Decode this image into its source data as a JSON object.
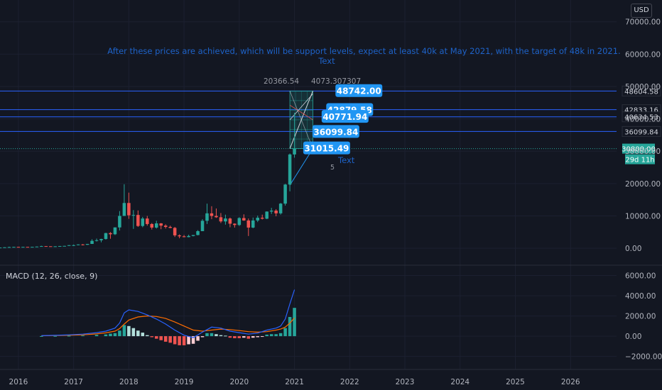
{
  "currency_button": "USD",
  "annotation_main": "After these prices are achieved, which will be support levels, expect at least 40k at May 2021, with the target of 48k in 2021.",
  "annotation_main_sub": "Text",
  "annotation_side": "Text",
  "wave_count": "5",
  "fib_label_left": "20366.54",
  "fib_label_right": "4073.307307",
  "price_badges": [
    {
      "value": "48742.00",
      "price": 48742,
      "date": "2022-03"
    },
    {
      "value": "42879.58",
      "price": 42879.58,
      "date": "2022-01"
    },
    {
      "value": "40771.94",
      "price": 40771.94,
      "date": "2021-12"
    },
    {
      "value": "36099.84",
      "price": 36099.84,
      "date": "2021-10"
    },
    {
      "value": "31015.49",
      "price": 31015.49,
      "date": "2021-08"
    }
  ],
  "levels": [
    {
      "value": "48604.58",
      "price": 48604.58
    },
    {
      "value": "42833.16",
      "price": 42833.16
    },
    {
      "value": "40634.53",
      "price": 40634.53
    },
    {
      "value": "36099.84",
      "price": 36099.84
    }
  ],
  "current_price": {
    "value": "30800.00",
    "price": 30800,
    "countdown": "29d 11h"
  },
  "macd_label": "MACD (12, 26, close, 9)",
  "colors": {
    "background": "#131722",
    "up": "#26a69a",
    "down": "#ef5350",
    "level_line": "#2962ff",
    "badge": "#2196f3",
    "macd_line": "#2962ff",
    "signal_line": "#ff6d00",
    "current_price": "#26a69a"
  },
  "chart_data": {
    "type": "candlestick",
    "price_axis": {
      "ticks": [
        0,
        10000,
        20000,
        30000,
        40000,
        50000,
        60000,
        70000
      ],
      "tick_labels": [
        "0.00",
        "10000.00",
        "20000.00",
        "30000.00",
        "40000.00",
        "50000.00",
        "60000.00",
        "70000.00"
      ],
      "ylim": [
        -1500,
        73000
      ]
    },
    "time_axis": {
      "labels": [
        "2016",
        "2017",
        "2018",
        "2019",
        "2020",
        "2021",
        "2022",
        "2023",
        "2024",
        "2025",
        "2026"
      ],
      "xlim": [
        "2015-09",
        "2026-11"
      ]
    },
    "ohlc": [
      {
        "date": "2015-09",
        "o": 230,
        "h": 240,
        "l": 225,
        "c": 236
      },
      {
        "date": "2015-10",
        "o": 236,
        "h": 315,
        "l": 235,
        "c": 312
      },
      {
        "date": "2015-11",
        "o": 312,
        "h": 490,
        "l": 310,
        "c": 377
      },
      {
        "date": "2015-12",
        "o": 377,
        "h": 465,
        "l": 350,
        "c": 430
      },
      {
        "date": "2016-01",
        "o": 430,
        "h": 460,
        "l": 355,
        "c": 368
      },
      {
        "date": "2016-02",
        "o": 368,
        "h": 440,
        "l": 365,
        "c": 436
      },
      {
        "date": "2016-03",
        "o": 436,
        "h": 440,
        "l": 405,
        "c": 416
      },
      {
        "date": "2016-04",
        "o": 416,
        "h": 465,
        "l": 414,
        "c": 448
      },
      {
        "date": "2016-05",
        "o": 448,
        "h": 540,
        "l": 435,
        "c": 531
      },
      {
        "date": "2016-06",
        "o": 531,
        "h": 780,
        "l": 525,
        "c": 673
      },
      {
        "date": "2016-07",
        "o": 673,
        "h": 700,
        "l": 610,
        "c": 624
      },
      {
        "date": "2016-08",
        "o": 624,
        "h": 625,
        "l": 535,
        "c": 575
      },
      {
        "date": "2016-09",
        "o": 575,
        "h": 620,
        "l": 570,
        "c": 609
      },
      {
        "date": "2016-10",
        "o": 609,
        "h": 715,
        "l": 605,
        "c": 700
      },
      {
        "date": "2016-11",
        "o": 700,
        "h": 755,
        "l": 690,
        "c": 745
      },
      {
        "date": "2016-12",
        "o": 745,
        "h": 980,
        "l": 740,
        "c": 963
      },
      {
        "date": "2017-01",
        "o": 963,
        "h": 1150,
        "l": 750,
        "c": 970
      },
      {
        "date": "2017-02",
        "o": 970,
        "h": 1200,
        "l": 915,
        "c": 1190
      },
      {
        "date": "2017-03",
        "o": 1190,
        "h": 1300,
        "l": 890,
        "c": 1080
      },
      {
        "date": "2017-04",
        "o": 1080,
        "h": 1360,
        "l": 1050,
        "c": 1350
      },
      {
        "date": "2017-05",
        "o": 1350,
        "h": 2800,
        "l": 1340,
        "c": 2300
      },
      {
        "date": "2017-06",
        "o": 2300,
        "h": 3000,
        "l": 2100,
        "c": 2480
      },
      {
        "date": "2017-07",
        "o": 2480,
        "h": 2950,
        "l": 1850,
        "c": 2875
      },
      {
        "date": "2017-08",
        "o": 2875,
        "h": 4780,
        "l": 2670,
        "c": 4700
      },
      {
        "date": "2017-09",
        "o": 4700,
        "h": 5000,
        "l": 2950,
        "c": 4340
      },
      {
        "date": "2017-10",
        "o": 4340,
        "h": 6470,
        "l": 4100,
        "c": 6450
      },
      {
        "date": "2017-11",
        "o": 6450,
        "h": 11500,
        "l": 5500,
        "c": 10000
      },
      {
        "date": "2017-12",
        "o": 10000,
        "h": 19800,
        "l": 10000,
        "c": 14000
      },
      {
        "date": "2018-01",
        "o": 14000,
        "h": 17200,
        "l": 9100,
        "c": 10200
      },
      {
        "date": "2018-02",
        "o": 10200,
        "h": 11800,
        "l": 6000,
        "c": 10300
      },
      {
        "date": "2018-03",
        "o": 10300,
        "h": 11700,
        "l": 6600,
        "c": 6900
      },
      {
        "date": "2018-04",
        "o": 6900,
        "h": 9700,
        "l": 6500,
        "c": 9200
      },
      {
        "date": "2018-05",
        "o": 9200,
        "h": 10000,
        "l": 7000,
        "c": 7500
      },
      {
        "date": "2018-06",
        "o": 7500,
        "h": 7800,
        "l": 5800,
        "c": 6400
      },
      {
        "date": "2018-07",
        "o": 6400,
        "h": 8500,
        "l": 6100,
        "c": 7700
      },
      {
        "date": "2018-08",
        "o": 7700,
        "h": 7800,
        "l": 5900,
        "c": 7000
      },
      {
        "date": "2018-09",
        "o": 7000,
        "h": 7400,
        "l": 6100,
        "c": 6600
      },
      {
        "date": "2018-10",
        "o": 6600,
        "h": 7000,
        "l": 6200,
        "c": 6300
      },
      {
        "date": "2018-11",
        "o": 6300,
        "h": 6600,
        "l": 3500,
        "c": 4000
      },
      {
        "date": "2018-12",
        "o": 4000,
        "h": 4300,
        "l": 3100,
        "c": 3700
      },
      {
        "date": "2019-01",
        "o": 3700,
        "h": 4100,
        "l": 3400,
        "c": 3450
      },
      {
        "date": "2019-02",
        "o": 3450,
        "h": 4200,
        "l": 3400,
        "c": 3800
      },
      {
        "date": "2019-03",
        "o": 3800,
        "h": 4100,
        "l": 3700,
        "c": 4100
      },
      {
        "date": "2019-04",
        "o": 4100,
        "h": 5600,
        "l": 4000,
        "c": 5300
      },
      {
        "date": "2019-05",
        "o": 5300,
        "h": 9000,
        "l": 5300,
        "c": 8500
      },
      {
        "date": "2019-06",
        "o": 8500,
        "h": 13800,
        "l": 7500,
        "c": 10800
      },
      {
        "date": "2019-07",
        "o": 10800,
        "h": 13000,
        "l": 9000,
        "c": 10000
      },
      {
        "date": "2019-08",
        "o": 10000,
        "h": 12300,
        "l": 9400,
        "c": 9600
      },
      {
        "date": "2019-09",
        "o": 9600,
        "h": 10900,
        "l": 7800,
        "c": 8300
      },
      {
        "date": "2019-10",
        "o": 8300,
        "h": 10400,
        "l": 7300,
        "c": 9200
      },
      {
        "date": "2019-11",
        "o": 9200,
        "h": 9500,
        "l": 6500,
        "c": 7600
      },
      {
        "date": "2019-12",
        "o": 7600,
        "h": 7700,
        "l": 6400,
        "c": 7200
      },
      {
        "date": "2020-01",
        "o": 7200,
        "h": 9600,
        "l": 6900,
        "c": 9350
      },
      {
        "date": "2020-02",
        "o": 9350,
        "h": 10500,
        "l": 8500,
        "c": 8600
      },
      {
        "date": "2020-03",
        "o": 8600,
        "h": 9200,
        "l": 3800,
        "c": 6400
      },
      {
        "date": "2020-04",
        "o": 6400,
        "h": 9500,
        "l": 6200,
        "c": 8600
      },
      {
        "date": "2020-05",
        "o": 8600,
        "h": 10100,
        "l": 8100,
        "c": 9450
      },
      {
        "date": "2020-06",
        "o": 9450,
        "h": 10400,
        "l": 8900,
        "c": 9150
      },
      {
        "date": "2020-07",
        "o": 9150,
        "h": 11400,
        "l": 9000,
        "c": 11350
      },
      {
        "date": "2020-08",
        "o": 11350,
        "h": 12500,
        "l": 10600,
        "c": 11650
      },
      {
        "date": "2020-09",
        "o": 11650,
        "h": 12100,
        "l": 9900,
        "c": 10800
      },
      {
        "date": "2020-10",
        "o": 10800,
        "h": 14000,
        "l": 10400,
        "c": 13800
      },
      {
        "date": "2020-11",
        "o": 13800,
        "h": 19900,
        "l": 13200,
        "c": 19700
      },
      {
        "date": "2020-12",
        "o": 19700,
        "h": 29300,
        "l": 17600,
        "c": 29000
      },
      {
        "date": "2021-01",
        "o": 29000,
        "h": 41900,
        "l": 28000,
        "c": 30800
      }
    ],
    "macd": {
      "label": "MACD (12, 26, close, 9)",
      "axis": {
        "ticks": [
          -2000,
          0,
          2000,
          4000,
          6000
        ],
        "tick_labels": [
          "−2000.00",
          "0.00",
          "2000.00",
          "4000.00",
          "6000.00"
        ],
        "ylim": [
          -2800,
          6600
        ]
      },
      "series_dates": [
        "2016-06",
        "2016-09",
        "2016-12",
        "2017-03",
        "2017-06",
        "2017-08",
        "2017-10",
        "2017-11",
        "2017-12",
        "2018-01",
        "2018-03",
        "2018-05",
        "2018-07",
        "2018-09",
        "2018-11",
        "2019-01",
        "2019-03",
        "2019-05",
        "2019-07",
        "2019-09",
        "2019-11",
        "2020-01",
        "2020-03",
        "2020-05",
        "2020-07",
        "2020-09",
        "2020-10",
        "2020-11",
        "2020-12",
        "2021-01"
      ],
      "macd_line": [
        50,
        80,
        130,
        200,
        350,
        500,
        800,
        1300,
        2300,
        2600,
        2450,
        2100,
        1700,
        1200,
        600,
        100,
        -150,
        400,
        900,
        800,
        500,
        350,
        200,
        300,
        600,
        800,
        1000,
        1700,
        3200,
        4600
      ],
      "signal_line": [
        40,
        60,
        90,
        130,
        220,
        330,
        500,
        750,
        1200,
        1600,
        1900,
        2000,
        1950,
        1750,
        1400,
        1000,
        600,
        500,
        600,
        700,
        650,
        550,
        450,
        400,
        450,
        600,
        700,
        900,
        1300,
        1800
      ],
      "histogram": [
        {
          "date": "2016-06",
          "v": 10
        },
        {
          "date": "2016-09",
          "v": 20
        },
        {
          "date": "2016-12",
          "v": 40
        },
        {
          "date": "2017-03",
          "v": 70
        },
        {
          "date": "2017-06",
          "v": 130
        },
        {
          "date": "2017-08",
          "v": 170
        },
        {
          "date": "2017-09",
          "v": 250
        },
        {
          "date": "2017-10",
          "v": 300
        },
        {
          "date": "2017-11",
          "v": 550
        },
        {
          "date": "2017-12",
          "v": 1100
        },
        {
          "date": "2018-01",
          "v": 1000
        },
        {
          "date": "2018-02",
          "v": 800
        },
        {
          "date": "2018-03",
          "v": 550
        },
        {
          "date": "2018-04",
          "v": 350
        },
        {
          "date": "2018-05",
          "v": 100
        },
        {
          "date": "2018-06",
          "v": -100
        },
        {
          "date": "2018-07",
          "v": -250
        },
        {
          "date": "2018-08",
          "v": -400
        },
        {
          "date": "2018-09",
          "v": -550
        },
        {
          "date": "2018-10",
          "v": -650
        },
        {
          "date": "2018-11",
          "v": -800
        },
        {
          "date": "2018-12",
          "v": -900
        },
        {
          "date": "2019-01",
          "v": -900
        },
        {
          "date": "2019-02",
          "v": -800
        },
        {
          "date": "2019-03",
          "v": -750
        },
        {
          "date": "2019-04",
          "v": -450
        },
        {
          "date": "2019-05",
          "v": -100
        },
        {
          "date": "2019-06",
          "v": 300
        },
        {
          "date": "2019-07",
          "v": 300
        },
        {
          "date": "2019-08",
          "v": 200
        },
        {
          "date": "2019-09",
          "v": 100
        },
        {
          "date": "2019-10",
          "v": 50
        },
        {
          "date": "2019-11",
          "v": -150
        },
        {
          "date": "2019-12",
          "v": -200
        },
        {
          "date": "2020-01",
          "v": -200
        },
        {
          "date": "2020-02",
          "v": -150
        },
        {
          "date": "2020-03",
          "v": -250
        },
        {
          "date": "2020-04",
          "v": -150
        },
        {
          "date": "2020-05",
          "v": -100
        },
        {
          "date": "2020-06",
          "v": -50
        },
        {
          "date": "2020-07",
          "v": 150
        },
        {
          "date": "2020-08",
          "v": 200
        },
        {
          "date": "2020-09",
          "v": 200
        },
        {
          "date": "2020-10",
          "v": 300
        },
        {
          "date": "2020-11",
          "v": 800
        },
        {
          "date": "2020-12",
          "v": 1900
        },
        {
          "date": "2021-01",
          "v": 2800
        }
      ]
    }
  }
}
